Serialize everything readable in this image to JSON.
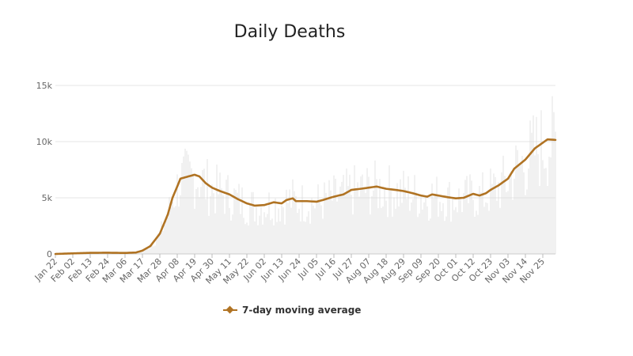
{
  "chart_data": {
    "type": "line",
    "title": "Daily Deaths",
    "xlabel": "",
    "ylabel": "",
    "ylim": [
      0,
      15000
    ],
    "y_ticks": [
      {
        "value": 0,
        "label": "0"
      },
      {
        "value": 5000,
        "label": "5k"
      },
      {
        "value": 10000,
        "label": "10k"
      },
      {
        "value": 15000,
        "label": "15k"
      }
    ],
    "x_tick_labels": [
      "Jan 22",
      "Feb 02",
      "Feb 13",
      "Feb 24",
      "Mar 06",
      "Mar 17",
      "Mar 28",
      "Apr 08",
      "Apr 19",
      "Apr 30",
      "May 11",
      "May 22",
      "Jun 02",
      "Jun 13",
      "Jun 24",
      "Jul 05",
      "Jul 16",
      "Jul 27",
      "Aug 07",
      "Aug 18",
      "Aug 29",
      "Sep 09",
      "Sep 20",
      "Oct 01",
      "Oct 12",
      "Oct 23",
      "Nov 03",
      "Nov 14",
      "Nov 25"
    ],
    "x_tick_day_step": 11,
    "grid": true,
    "legend_position": "bottom",
    "series": [
      {
        "name": "7-day moving average",
        "color": "#b07323",
        "points": [
          [
            "Jan 22",
            0
          ],
          [
            "Feb 02",
            50
          ],
          [
            "Feb 13",
            100
          ],
          [
            "Feb 24",
            110
          ],
          [
            "Mar 06",
            90
          ],
          [
            "Mar 13",
            130
          ],
          [
            "Mar 17",
            300
          ],
          [
            "Mar 22",
            700
          ],
          [
            "Mar 28",
            1800
          ],
          [
            "Apr 02",
            3500
          ],
          [
            "Apr 05",
            5000
          ],
          [
            "Apr 08",
            6000
          ],
          [
            "Apr 10",
            6700
          ],
          [
            "Apr 15",
            6900
          ],
          [
            "Apr 19",
            7050
          ],
          [
            "Apr 22",
            6900
          ],
          [
            "Apr 26",
            6300
          ],
          [
            "Apr 30",
            5900
          ],
          [
            "May 05",
            5600
          ],
          [
            "May 11",
            5300
          ],
          [
            "May 16",
            4900
          ],
          [
            "May 22",
            4500
          ],
          [
            "May 27",
            4300
          ],
          [
            "Jun 02",
            4350
          ],
          [
            "Jun 08",
            4600
          ],
          [
            "Jun 13",
            4500
          ],
          [
            "Jun 16",
            4800
          ],
          [
            "Jun 20",
            4950
          ],
          [
            "Jun 22",
            4700
          ],
          [
            "Jun 29",
            4700
          ],
          [
            "Jul 05",
            4650
          ],
          [
            "Jul 09",
            4800
          ],
          [
            "Jul 16",
            5100
          ],
          [
            "Jul 22",
            5300
          ],
          [
            "Jul 27",
            5700
          ],
          [
            "Aug 02",
            5800
          ],
          [
            "Aug 07",
            5900
          ],
          [
            "Aug 12",
            6000
          ],
          [
            "Aug 18",
            5800
          ],
          [
            "Aug 24",
            5700
          ],
          [
            "Aug 29",
            5600
          ],
          [
            "Sep 04",
            5400
          ],
          [
            "Sep 09",
            5200
          ],
          [
            "Sep 13",
            5100
          ],
          [
            "Sep 16",
            5300
          ],
          [
            "Sep 20",
            5200
          ],
          [
            "Sep 26",
            5050
          ],
          [
            "Oct 01",
            4950
          ],
          [
            "Oct 06",
            5000
          ],
          [
            "Oct 12",
            5350
          ],
          [
            "Oct 16",
            5200
          ],
          [
            "Oct 20",
            5400
          ],
          [
            "Oct 23",
            5700
          ],
          [
            "Oct 28",
            6100
          ],
          [
            "Nov 03",
            6700
          ],
          [
            "Nov 07",
            7600
          ],
          [
            "Nov 14",
            8400
          ],
          [
            "Nov 20",
            9400
          ],
          [
            "Nov 25",
            9900
          ],
          [
            "Nov 28",
            10200
          ],
          [
            "Dec 03",
            10150
          ]
        ]
      }
    ]
  }
}
